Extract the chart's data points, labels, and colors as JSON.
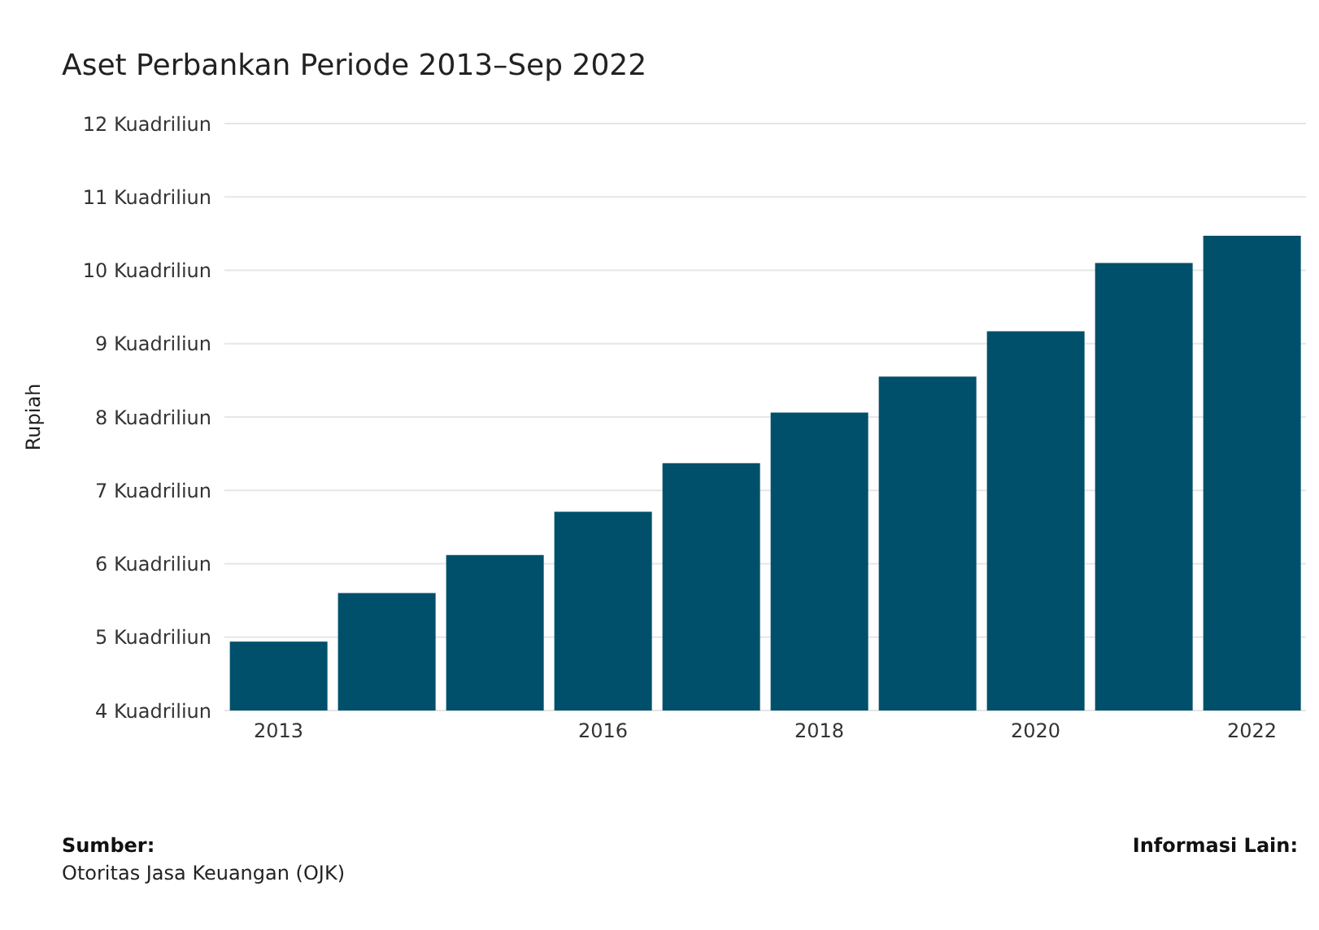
{
  "chart_data": {
    "type": "bar",
    "title": "Aset Perbankan Periode 2013–Sep 2022",
    "ylabel": "Rupiah",
    "categories": [
      "2013",
      null,
      null,
      "2016",
      null,
      "2018",
      null,
      "2020",
      null,
      "2022"
    ],
    "values": [
      4.94,
      5.6,
      6.12,
      6.71,
      7.37,
      8.06,
      8.55,
      9.17,
      10.1,
      10.47
    ],
    "color": "#00506b",
    "ylim": [
      4,
      12
    ],
    "yticks": [
      {
        "value": 4,
        "label": "4 Kuadriliun"
      },
      {
        "value": 5,
        "label": "5 Kuadriliun"
      },
      {
        "value": 6,
        "label": "6 Kuadriliun"
      },
      {
        "value": 7,
        "label": "7 Kuadriliun"
      },
      {
        "value": 8,
        "label": "8 Kuadriliun"
      },
      {
        "value": 9,
        "label": "9 Kuadriliun"
      },
      {
        "value": 10,
        "label": "10 Kuadriliun"
      },
      {
        "value": 11,
        "label": "11 Kuadriliun"
      },
      {
        "value": 12,
        "label": "12 Kuadriliun"
      }
    ],
    "grid": "y",
    "annotations": [
      "Sumber:",
      "Otoritas Jasa Keuangan (OJK)",
      "Informasi Lain:"
    ]
  }
}
